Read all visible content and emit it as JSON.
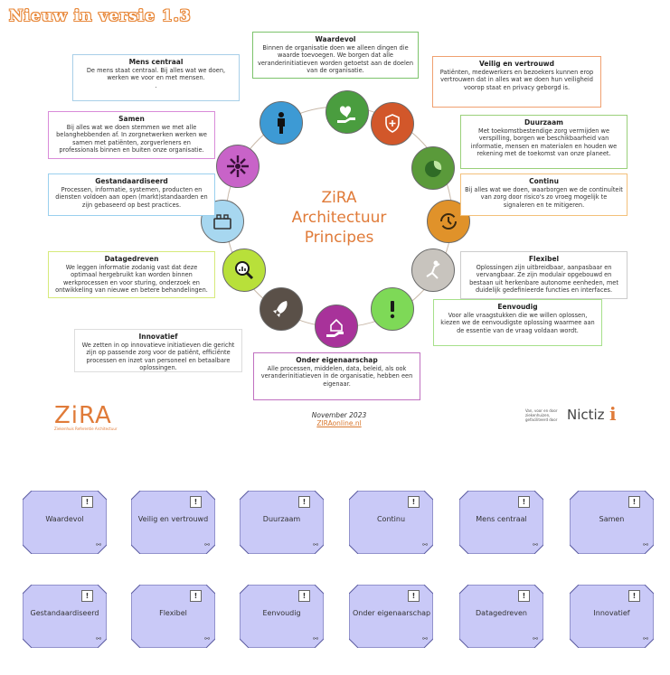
{
  "title": "Nieuw in versie 1.3",
  "center_title": [
    "ZiRA",
    "Architectuur",
    "Principes"
  ],
  "principles": [
    {
      "name": "Waardevol",
      "text": "Binnen de organisatie doen we alleen dingen die waarde toevoegen. We borgen dat alle veranderinitiatieven worden getoetst aan de doelen van de organisatie.",
      "color": "#4a9d3f",
      "icon": "heart-hand-icon",
      "border": "#7cc36b"
    },
    {
      "name": "Veilig en vertrouwd",
      "text": "Patiënten, medewerkers en bezoekers kunnen erop vertrouwen dat in alles wat we doen hun veiligheid voorop staat en privacy geborgd is.",
      "color": "#d2572a",
      "icon": "shield-hand-icon",
      "border": "#f0a070"
    },
    {
      "name": "Duurzaam",
      "text": "Met toekomstbestendige zorg vermijden we verspilling, borgen we beschikbaarheid van informatie, mensen en materialen en houden we rekening met de toekomst van onze planeet.",
      "color": "#5a9a3a",
      "icon": "earth-leaf-icon",
      "border": "#9ad07a"
    },
    {
      "name": "Continu",
      "text": "Bij alles wat we doen, waarborgen we de continuïteit van zorg door risico's zo vroeg mogelijk te signaleren en te mitigeren.",
      "color": "#e0922a",
      "icon": "cycle-icon",
      "border": "#f3c07a"
    },
    {
      "name": "Flexibel",
      "text": "Oplossingen zijn uitbreidbaar, aanpasbaar en vervangbaar. Ze zijn modulair opgebouwd en bestaan uit herkenbare autonome eenheden, met duidelijk gedefinieerde functies en interfaces.",
      "color": "#c8c4be",
      "icon": "stretch-figure-icon",
      "border": "#cccccc"
    },
    {
      "name": "Eenvoudig",
      "text": "Voor alle vraagstukken die we willen oplossen, kiezen we de eenvoudigste oplossing waarmee aan de essentie van de vraag voldaan wordt.",
      "color": "#7ed957",
      "icon": "exclamation-icon",
      "border": "#a6e08a"
    },
    {
      "name": "Onder eigenaarschap",
      "text": "Alle processen, middelen, data, beleid, als ook veranderinitiatieven in de organisatie, hebben een eigenaar.",
      "color": "#a8329a",
      "icon": "house-hand-icon",
      "border": "#c070c0"
    },
    {
      "name": "Innovatief",
      "text": "We zetten in op innovatieve initiatieven die gericht zijn op passende zorg voor de patiënt, efficiënte processen en inzet van personeel en betaalbare oplossingen.",
      "color": "#5a5048",
      "icon": "rocket-icon",
      "border": "#dddddd"
    },
    {
      "name": "Datagedreven",
      "text": "We leggen informatie zodanig vast dat deze optimaal hergebruikt kan worden binnen werkprocessen en voor sturing, onderzoek en ontwikkeling van nieuwe en betere behandelingen.",
      "color": "#b8e03a",
      "icon": "chart-magnifier-icon",
      "border": "#d6ea7a"
    },
    {
      "name": "Gestandaardiseerd",
      "text": "Processen, informatie, systemen, producten en diensten voldoen aan open (markt)standaarden en zijn gebaseerd op best practices.",
      "color": "#a7d7f0",
      "icon": "building-blocks-icon",
      "border": "#9ad0ee"
    },
    {
      "name": "Samen",
      "text": "Bij alles wat we doen stemmen we met alle belanghebbenden af. In zorgnetwerken werken we samen met patiënten, zorgverleners en professionals binnen en buiten onze organisatie.",
      "color": "#c863c8",
      "icon": "joined-hands-icon",
      "border": "#d98bd9"
    },
    {
      "name": "Mens centraal",
      "text": "De mens staat centraal. Bij alles wat we doen, werken we voor en met mensen.",
      "text_extra": ".",
      "color": "#3d9ad4",
      "icon": "person-icon",
      "border": "#a8cfe8"
    }
  ],
  "footer": {
    "zira_logo": "ZiRA",
    "zira_sub": "Ziekenhuis Referentie Architectuur",
    "date": "November 2023",
    "url": "ZIRAonline.nl",
    "nictiz_small": "Van, voor en door ziekenhuizen, gefaciliteerd door",
    "nictiz": "Nictiz"
  },
  "cards": [
    {
      "label": "Waardevol"
    },
    {
      "label": "Veilig en vertrouwd"
    },
    {
      "label": "Duurzaam"
    },
    {
      "label": "Continu"
    },
    {
      "label": "Mens centraal"
    },
    {
      "label": "Samen"
    },
    {
      "label": "Gestandaardiseerd"
    },
    {
      "label": "Flexibel"
    },
    {
      "label": "Eenvoudig"
    },
    {
      "label": "Onder eigenaarschap"
    },
    {
      "label": "Datagedreven"
    },
    {
      "label": "Innovatief"
    }
  ],
  "card_mark": "!",
  "card_link": "⚯"
}
